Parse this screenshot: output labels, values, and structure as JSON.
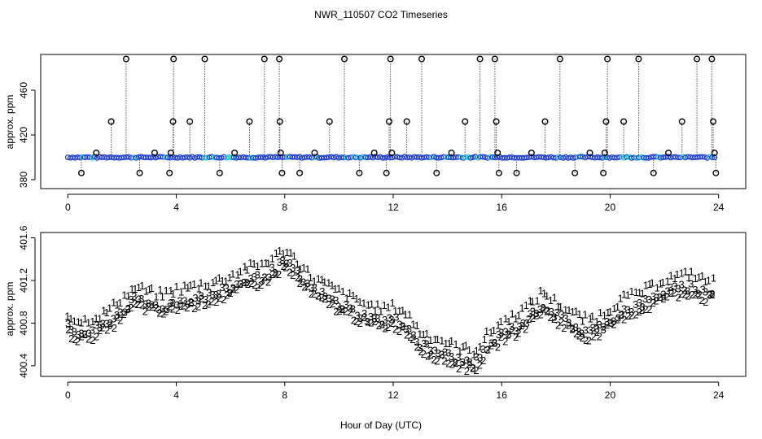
{
  "title": "NWR_110507  CO2 Timeseries",
  "xlabel": "Hour of Day (UTC)",
  "chart_data": [
    {
      "type": "scatter",
      "name": "top-panel",
      "ylabel": "approx. ppm",
      "xlim": [
        -1,
        25
      ],
      "ylim": [
        372,
        492
      ],
      "xticks": [
        0,
        4,
        8,
        12,
        16,
        20,
        24
      ],
      "yticks": [
        380,
        420,
        460
      ],
      "baseline": 400,
      "colors": {
        "baseline": "#1f3fd6",
        "markers": "#000000",
        "cyan": "#19c9c9"
      },
      "spikes": [
        {
          "x": 2.15,
          "y": 488
        },
        {
          "x": 1.6,
          "y": 432
        },
        {
          "x": 1.05,
          "y": 404
        },
        {
          "x": 0.5,
          "y": 386
        },
        {
          "x": 2.65,
          "y": 386
        },
        {
          "x": 3.2,
          "y": 404
        },
        {
          "x": 3.75,
          "y": 386
        },
        {
          "x": 3.8,
          "y": 404
        },
        {
          "x": 3.9,
          "y": 488
        },
        {
          "x": 3.88,
          "y": 432
        },
        {
          "x": 4.5,
          "y": 432
        },
        {
          "x": 5.05,
          "y": 488
        },
        {
          "x": 5.6,
          "y": 386
        },
        {
          "x": 6.15,
          "y": 404
        },
        {
          "x": 6.7,
          "y": 432
        },
        {
          "x": 7.25,
          "y": 488
        },
        {
          "x": 7.8,
          "y": 488
        },
        {
          "x": 7.82,
          "y": 432
        },
        {
          "x": 7.85,
          "y": 404
        },
        {
          "x": 7.9,
          "y": 386
        },
        {
          "x": 8.55,
          "y": 386
        },
        {
          "x": 9.1,
          "y": 404
        },
        {
          "x": 9.65,
          "y": 432
        },
        {
          "x": 10.2,
          "y": 488
        },
        {
          "x": 10.75,
          "y": 386
        },
        {
          "x": 11.3,
          "y": 404
        },
        {
          "x": 11.75,
          "y": 386
        },
        {
          "x": 11.85,
          "y": 432
        },
        {
          "x": 11.9,
          "y": 488
        },
        {
          "x": 11.95,
          "y": 404
        },
        {
          "x": 12.5,
          "y": 432
        },
        {
          "x": 13.05,
          "y": 488
        },
        {
          "x": 13.6,
          "y": 386
        },
        {
          "x": 14.15,
          "y": 404
        },
        {
          "x": 14.65,
          "y": 432
        },
        {
          "x": 15.2,
          "y": 488
        },
        {
          "x": 15.75,
          "y": 488
        },
        {
          "x": 15.8,
          "y": 432
        },
        {
          "x": 15.85,
          "y": 404
        },
        {
          "x": 15.9,
          "y": 386
        },
        {
          "x": 16.55,
          "y": 386
        },
        {
          "x": 17.1,
          "y": 404
        },
        {
          "x": 17.6,
          "y": 432
        },
        {
          "x": 18.15,
          "y": 488
        },
        {
          "x": 18.7,
          "y": 386
        },
        {
          "x": 19.25,
          "y": 404
        },
        {
          "x": 19.75,
          "y": 386
        },
        {
          "x": 19.8,
          "y": 404
        },
        {
          "x": 19.85,
          "y": 432
        },
        {
          "x": 19.9,
          "y": 488
        },
        {
          "x": 20.5,
          "y": 432
        },
        {
          "x": 21.05,
          "y": 488
        },
        {
          "x": 21.6,
          "y": 386
        },
        {
          "x": 22.15,
          "y": 404
        },
        {
          "x": 22.65,
          "y": 432
        },
        {
          "x": 23.2,
          "y": 488
        },
        {
          "x": 23.75,
          "y": 488
        },
        {
          "x": 23.8,
          "y": 432
        },
        {
          "x": 23.85,
          "y": 404
        },
        {
          "x": 23.9,
          "y": 386
        }
      ]
    },
    {
      "type": "scatter",
      "name": "bottom-panel",
      "ylabel": "approx. ppm",
      "xlim": [
        -1,
        25
      ],
      "ylim": [
        400.3,
        401.65
      ],
      "xticks": [
        0,
        4,
        8,
        12,
        16,
        20,
        24
      ],
      "yticks": [
        400.4,
        400.8,
        401.2,
        401.6
      ],
      "ytick_labels": [
        "400.4",
        "400.8",
        "401.2",
        "401.6"
      ],
      "series": [
        {
          "name": "1",
          "symbol": "1",
          "color": "#e01010",
          "offset": 0.12
        },
        {
          "name": "2",
          "symbol": "2",
          "color": "#1fb51f",
          "offset": -0.05
        },
        {
          "name": "3",
          "symbol": "3",
          "color": "#1a1aa6",
          "offset": 0
        }
      ],
      "trend_x": [
        0,
        0.5,
        1,
        1.5,
        2,
        2.5,
        3,
        3.5,
        4,
        4.5,
        5,
        5.5,
        6,
        6.5,
        7,
        7.5,
        8,
        8.5,
        9,
        9.5,
        10,
        10.5,
        11,
        11.5,
        12,
        12.5,
        13,
        13.5,
        14,
        14.5,
        15,
        15.5,
        16,
        16.5,
        17,
        17.5,
        18,
        18.5,
        19,
        19.5,
        20,
        20.5,
        21,
        21.5,
        22,
        22.5,
        23,
        23.5,
        23.8
      ],
      "trend_y": [
        400.76,
        400.7,
        400.74,
        400.8,
        400.92,
        401.02,
        400.98,
        400.95,
        401.0,
        401.02,
        401.05,
        401.08,
        401.12,
        401.2,
        401.22,
        401.28,
        401.38,
        401.25,
        401.12,
        401.05,
        400.98,
        400.92,
        400.86,
        400.82,
        400.84,
        400.78,
        400.6,
        400.55,
        400.5,
        400.45,
        400.42,
        400.58,
        400.7,
        400.76,
        400.85,
        400.98,
        400.88,
        400.8,
        400.72,
        400.74,
        400.82,
        400.92,
        400.96,
        401.02,
        401.1,
        401.12,
        401.15,
        401.08,
        401.1
      ]
    }
  ]
}
